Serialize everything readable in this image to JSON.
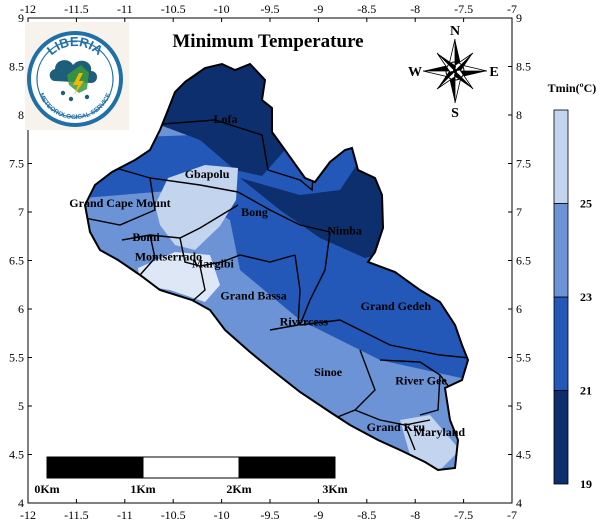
{
  "map": {
    "title": "Minimum Temperature",
    "x_ticks": [
      "-12",
      "-11.5",
      "-11",
      "-10.5",
      "-10",
      "-9.5",
      "-9",
      "-8.5",
      "-8",
      "-7.5",
      "-7"
    ],
    "y_ticks": [
      "4",
      "4.5",
      "5",
      "5.5",
      "6",
      "6.5",
      "7",
      "7.5",
      "8",
      "8.5",
      "9"
    ],
    "counties": [
      {
        "name": "Lofa",
        "lon": -9.96,
        "lat": 7.92
      },
      {
        "name": "Gbapolu",
        "lon": -10.15,
        "lat": 7.35
      },
      {
        "name": "Grand Cape Mount",
        "lon": -11.05,
        "lat": 7.05
      },
      {
        "name": "Bong",
        "lon": -9.66,
        "lat": 6.96
      },
      {
        "name": "Nimba",
        "lon": -8.73,
        "lat": 6.77
      },
      {
        "name": "Bomi",
        "lon": -10.78,
        "lat": 6.7
      },
      {
        "name": "Montserrado",
        "lon": -10.55,
        "lat": 6.5
      },
      {
        "name": "Margibi",
        "lon": -10.09,
        "lat": 6.43
      },
      {
        "name": "Grand Bassa",
        "lon": -9.67,
        "lat": 6.1
      },
      {
        "name": "Rivercess",
        "lon": -9.15,
        "lat": 5.83
      },
      {
        "name": "Grand Gedeh",
        "lon": -8.2,
        "lat": 5.99
      },
      {
        "name": "Sinoe",
        "lon": -8.9,
        "lat": 5.31
      },
      {
        "name": "River Gee",
        "lon": -7.94,
        "lat": 5.22
      },
      {
        "name": "Grand Kru",
        "lon": -8.2,
        "lat": 4.74
      },
      {
        "name": "Maryland",
        "lon": -7.75,
        "lat": 4.69
      }
    ]
  },
  "legend": {
    "title": "Tmin(ºC)",
    "ticks": [
      "19",
      "21",
      "23",
      "25"
    ],
    "bins": [
      {
        "range": [
          19,
          21
        ],
        "color": "#0e2f6e"
      },
      {
        "range": [
          21,
          23
        ],
        "color": "#2358b8"
      },
      {
        "range": [
          23,
          25
        ],
        "color": "#6c93d6"
      },
      {
        "range": [
          25,
          27
        ],
        "color": "#c3d4ef"
      }
    ]
  },
  "scale_bar": {
    "labels": [
      "0Km",
      "1Km",
      "2Km",
      "3Km"
    ]
  },
  "compass": {
    "n": "N",
    "s": "S",
    "e": "E",
    "w": "W"
  },
  "logo": {
    "name": "LIBERIA",
    "subtitle": "METEOROLOGICAL SERVICE"
  },
  "colors": {
    "zone_darkest": "#0e2f6e",
    "zone_dark": "#2358b8",
    "zone_mid": "#6c93d6",
    "zone_light": "#c3d4ef",
    "zone_lightest": "#dde7f6"
  }
}
